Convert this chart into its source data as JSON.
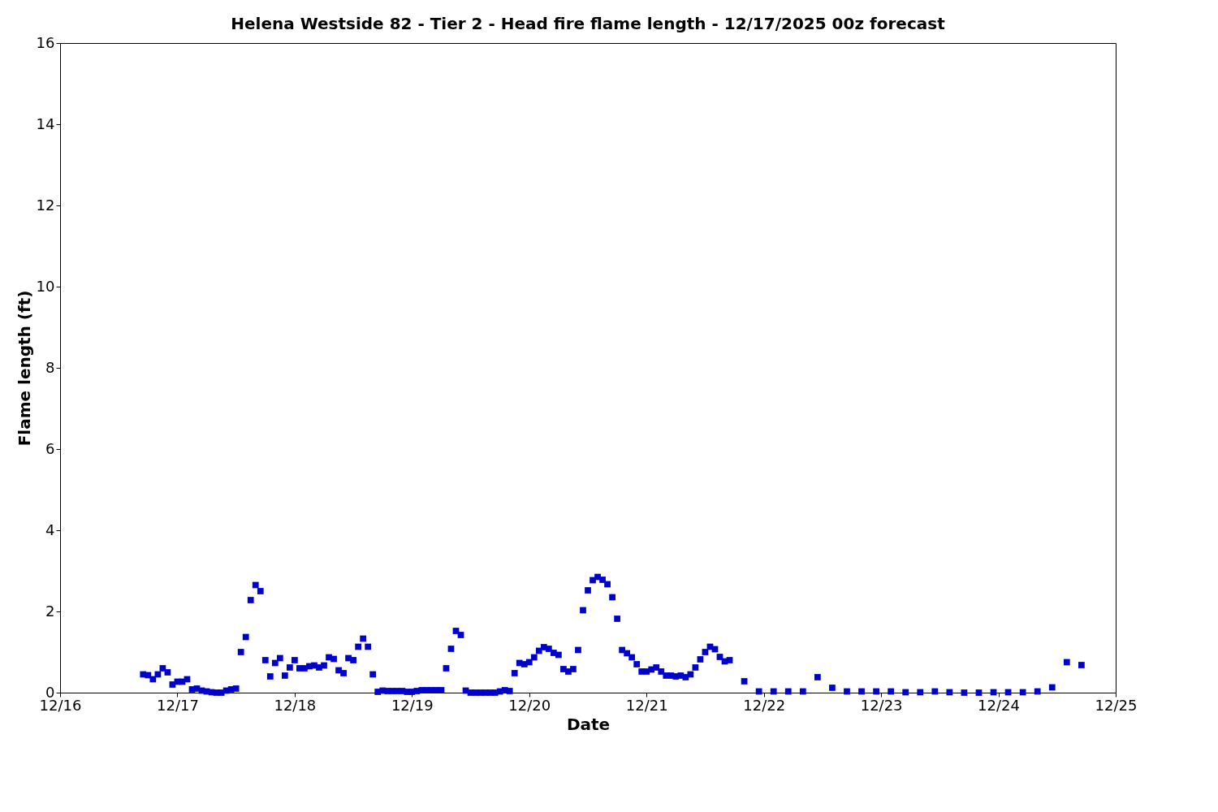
{
  "chart_data": {
    "type": "scatter",
    "title": "Helena Westside 82 - Tier 2 - Head fire flame length - 12/17/2025 00z forecast",
    "xlabel": "Date",
    "ylabel": "Flame length (ft)",
    "x": [
      "2025-12-16T17:00",
      "2025-12-16T18:00",
      "2025-12-16T19:00",
      "2025-12-16T20:00",
      "2025-12-16T21:00",
      "2025-12-16T22:00",
      "2025-12-16T23:00",
      "2025-12-17T00:00",
      "2025-12-17T01:00",
      "2025-12-17T02:00",
      "2025-12-17T03:00",
      "2025-12-17T04:00",
      "2025-12-17T05:00",
      "2025-12-17T06:00",
      "2025-12-17T07:00",
      "2025-12-17T08:00",
      "2025-12-17T09:00",
      "2025-12-17T10:00",
      "2025-12-17T11:00",
      "2025-12-17T12:00",
      "2025-12-17T13:00",
      "2025-12-17T14:00",
      "2025-12-17T15:00",
      "2025-12-17T16:00",
      "2025-12-17T17:00",
      "2025-12-17T18:00",
      "2025-12-17T19:00",
      "2025-12-17T20:00",
      "2025-12-17T21:00",
      "2025-12-17T22:00",
      "2025-12-17T23:00",
      "2025-12-18T00:00",
      "2025-12-18T01:00",
      "2025-12-18T02:00",
      "2025-12-18T03:00",
      "2025-12-18T04:00",
      "2025-12-18T05:00",
      "2025-12-18T06:00",
      "2025-12-18T07:00",
      "2025-12-18T08:00",
      "2025-12-18T09:00",
      "2025-12-18T10:00",
      "2025-12-18T11:00",
      "2025-12-18T12:00",
      "2025-12-18T13:00",
      "2025-12-18T14:00",
      "2025-12-18T15:00",
      "2025-12-18T16:00",
      "2025-12-18T17:00",
      "2025-12-18T18:00",
      "2025-12-18T19:00",
      "2025-12-18T20:00",
      "2025-12-18T21:00",
      "2025-12-18T22:00",
      "2025-12-18T23:00",
      "2025-12-19T00:00",
      "2025-12-19T01:00",
      "2025-12-19T02:00",
      "2025-12-19T03:00",
      "2025-12-19T04:00",
      "2025-12-19T05:00",
      "2025-12-19T06:00",
      "2025-12-19T07:00",
      "2025-12-19T08:00",
      "2025-12-19T09:00",
      "2025-12-19T10:00",
      "2025-12-19T11:00",
      "2025-12-19T12:00",
      "2025-12-19T13:00",
      "2025-12-19T14:00",
      "2025-12-19T15:00",
      "2025-12-19T16:00",
      "2025-12-19T17:00",
      "2025-12-19T18:00",
      "2025-12-19T19:00",
      "2025-12-19T20:00",
      "2025-12-19T21:00",
      "2025-12-19T22:00",
      "2025-12-19T23:00",
      "2025-12-20T00:00",
      "2025-12-20T01:00",
      "2025-12-20T02:00",
      "2025-12-20T03:00",
      "2025-12-20T04:00",
      "2025-12-20T05:00",
      "2025-12-20T06:00",
      "2025-12-20T07:00",
      "2025-12-20T08:00",
      "2025-12-20T09:00",
      "2025-12-20T10:00",
      "2025-12-20T11:00",
      "2025-12-20T12:00",
      "2025-12-20T13:00",
      "2025-12-20T14:00",
      "2025-12-20T15:00",
      "2025-12-20T16:00",
      "2025-12-20T17:00",
      "2025-12-20T18:00",
      "2025-12-20T19:00",
      "2025-12-20T20:00",
      "2025-12-20T21:00",
      "2025-12-20T22:00",
      "2025-12-20T23:00",
      "2025-12-21T00:00",
      "2025-12-21T01:00",
      "2025-12-21T02:00",
      "2025-12-21T03:00",
      "2025-12-21T04:00",
      "2025-12-21T05:00",
      "2025-12-21T06:00",
      "2025-12-21T07:00",
      "2025-12-21T08:00",
      "2025-12-21T09:00",
      "2025-12-21T10:00",
      "2025-12-21T11:00",
      "2025-12-21T12:00",
      "2025-12-21T13:00",
      "2025-12-21T14:00",
      "2025-12-21T15:00",
      "2025-12-21T16:00",
      "2025-12-21T17:00",
      "2025-12-21T20:00",
      "2025-12-21T23:00",
      "2025-12-22T02:00",
      "2025-12-22T05:00",
      "2025-12-22T08:00",
      "2025-12-22T11:00",
      "2025-12-22T14:00",
      "2025-12-22T17:00",
      "2025-12-22T20:00",
      "2025-12-22T23:00",
      "2025-12-23T02:00",
      "2025-12-23T05:00",
      "2025-12-23T08:00",
      "2025-12-23T11:00",
      "2025-12-23T14:00",
      "2025-12-23T17:00",
      "2025-12-23T20:00",
      "2025-12-23T23:00",
      "2025-12-24T02:00",
      "2025-12-24T05:00",
      "2025-12-24T08:00",
      "2025-12-24T11:00",
      "2025-12-24T14:00",
      "2025-12-24T17:00"
    ],
    "series": [
      {
        "color": "#0000cc",
        "values": [
          0.45,
          0.43,
          0.33,
          0.45,
          0.6,
          0.5,
          0.2,
          0.27,
          0.27,
          0.33,
          0.08,
          0.1,
          0.05,
          0.03,
          0.01,
          0,
          0,
          0.05,
          0.08,
          0.1,
          1.0,
          1.37,
          2.28,
          2.65,
          2.5,
          0.8,
          0.4,
          0.73,
          0.85,
          0.42,
          0.62,
          0.8,
          0.6,
          0.6,
          0.65,
          0.67,
          0.62,
          0.67,
          0.87,
          0.83,
          0.55,
          0.48,
          0.85,
          0.8,
          1.13,
          1.33,
          1.13,
          0.45,
          0.02,
          0.05,
          0.04,
          0.04,
          0.04,
          0.04,
          0.02,
          0.02,
          0.04,
          0.06,
          0.06,
          0.06,
          0.06,
          0.06,
          0.6,
          1.08,
          1.52,
          1.42,
          0.05,
          0,
          0,
          0,
          0,
          0,
          0,
          0.03,
          0.06,
          0.04,
          0.48,
          0.73,
          0.7,
          0.75,
          0.87,
          1.03,
          1.12,
          1.08,
          0.98,
          0.93,
          0.58,
          0.52,
          0.58,
          1.05,
          2.03,
          2.52,
          2.77,
          2.85,
          2.78,
          2.67,
          2.35,
          1.82,
          1.05,
          0.97,
          0.87,
          0.7,
          0.52,
          0.52,
          0.57,
          0.62,
          0.52,
          0.42,
          0.42,
          0.4,
          0.42,
          0.38,
          0.45,
          0.62,
          0.82,
          1.0,
          1.13,
          1.07,
          0.88,
          0.77,
          0.8,
          0.28,
          0.03,
          0.03,
          0.03,
          0.03,
          0.38,
          0.12,
          0.03,
          0.03,
          0.03,
          0.03,
          0.01,
          0.01,
          0.03,
          0.01,
          0,
          0,
          0.01,
          0.01,
          0.01,
          0.03,
          0.13,
          0.75,
          0.68
        ]
      }
    ],
    "marker": "square",
    "legend": false,
    "grid": false,
    "xlim": [
      "2025-12-16",
      "2025-12-25"
    ],
    "xticks": [
      {
        "value": "2025-12-16",
        "label": "12/16"
      },
      {
        "value": "2025-12-17",
        "label": "12/17"
      },
      {
        "value": "2025-12-18",
        "label": "12/18"
      },
      {
        "value": "2025-12-19",
        "label": "12/19"
      },
      {
        "value": "2025-12-20",
        "label": "12/20"
      },
      {
        "value": "2025-12-21",
        "label": "12/21"
      },
      {
        "value": "2025-12-22",
        "label": "12/22"
      },
      {
        "value": "2025-12-23",
        "label": "12/23"
      },
      {
        "value": "2025-12-24",
        "label": "12/24"
      },
      {
        "value": "2025-12-25",
        "label": "12/25"
      }
    ],
    "ylim": [
      0,
      16
    ],
    "yticks": [
      0,
      2,
      4,
      6,
      8,
      10,
      12,
      14,
      16
    ]
  }
}
